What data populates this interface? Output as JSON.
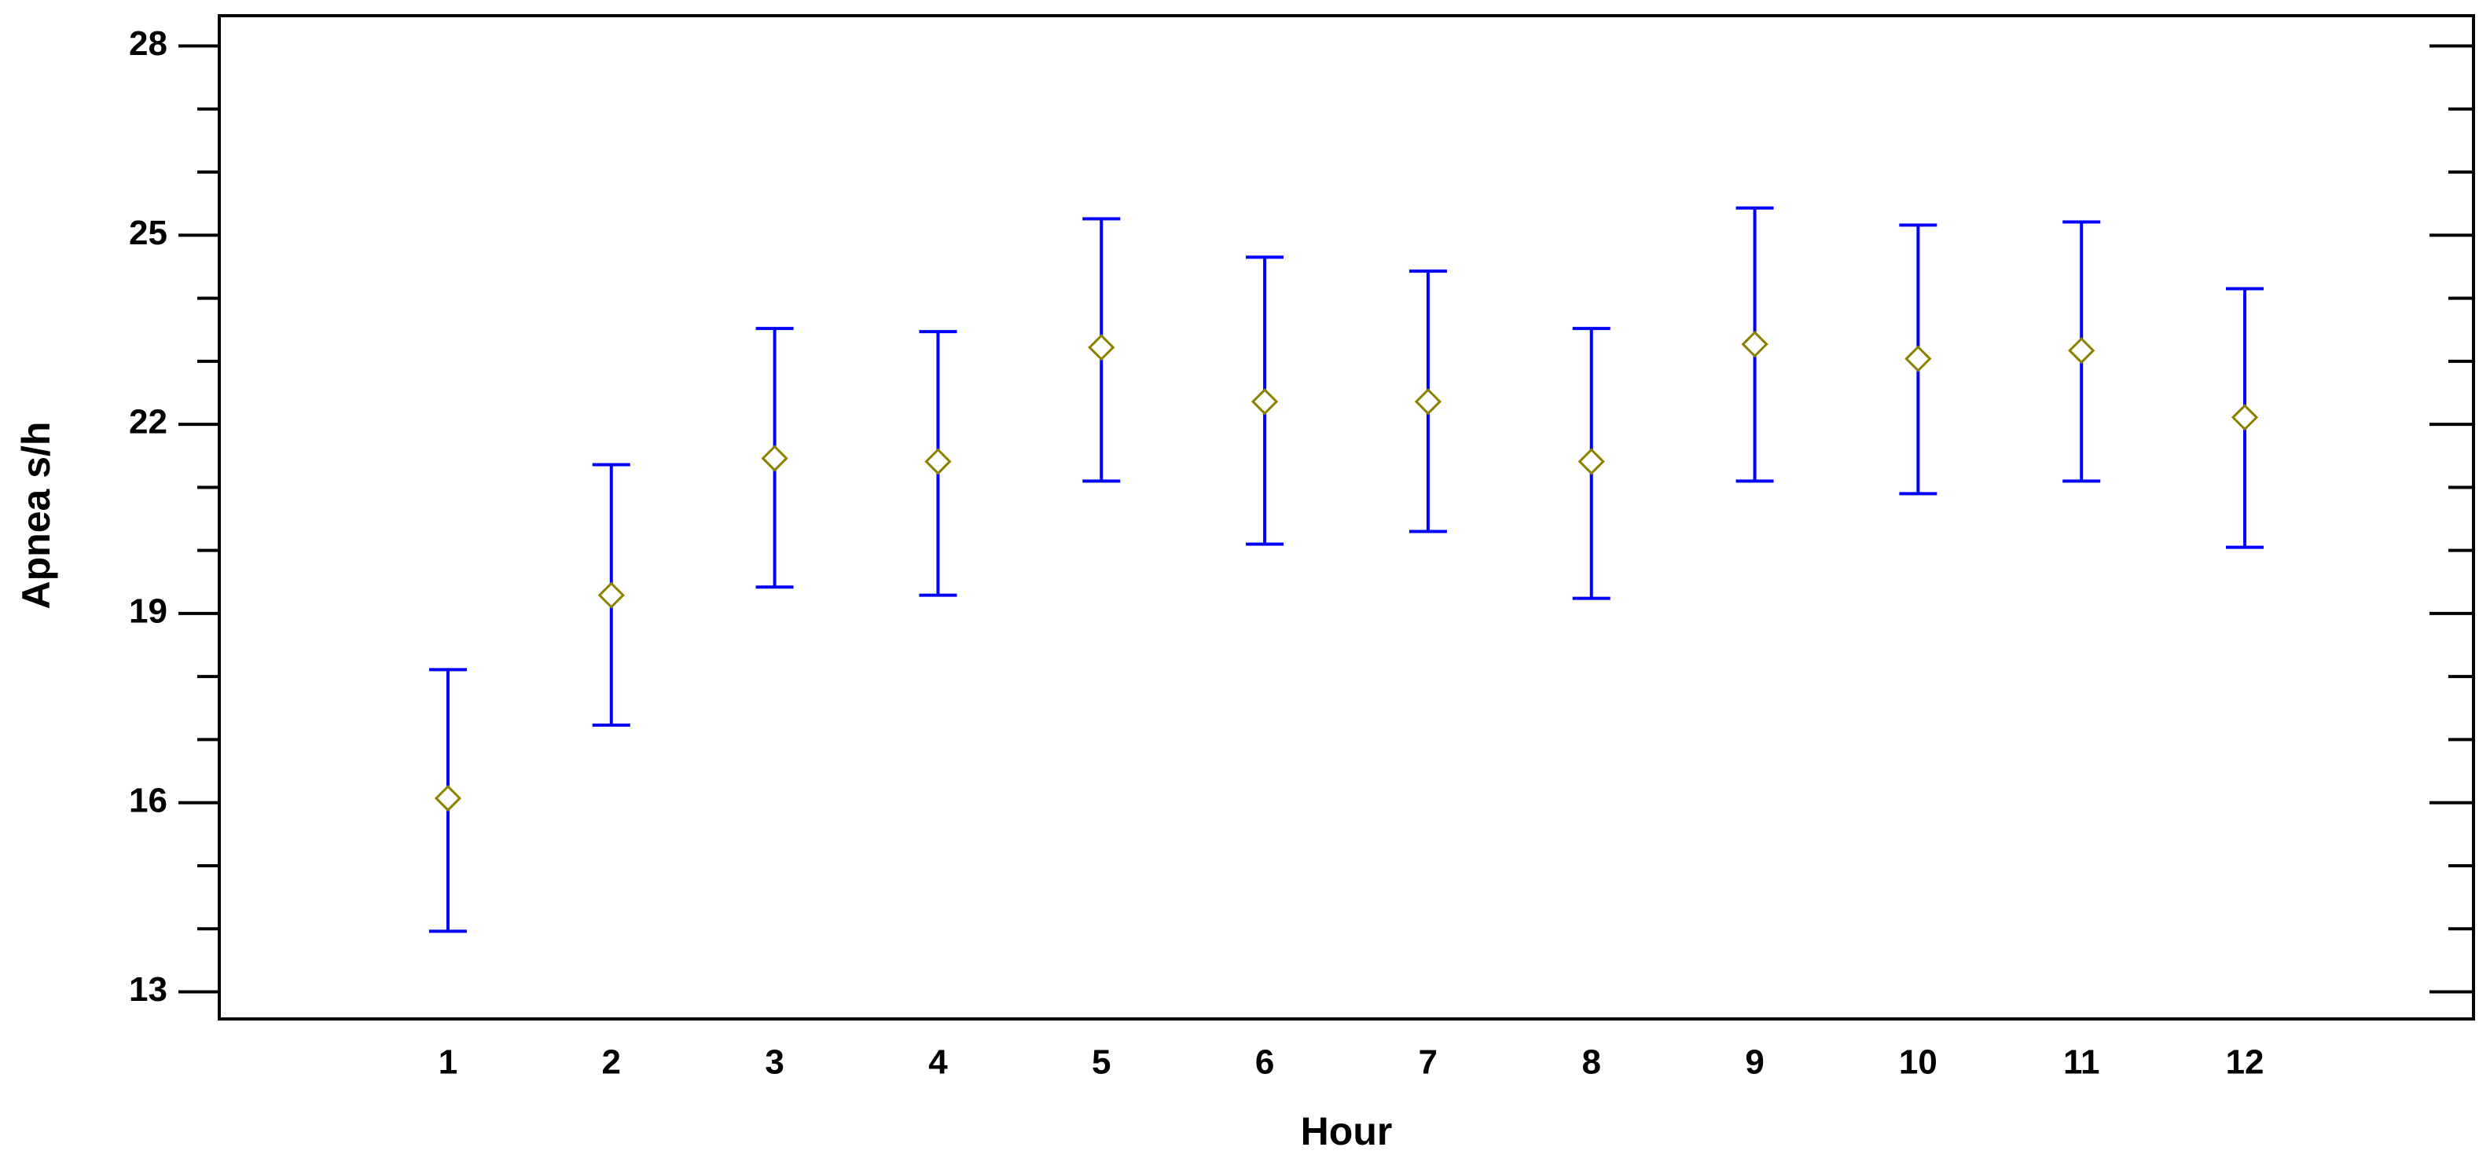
{
  "chart_data": {
    "type": "errorbar",
    "x_label": "Hour",
    "y_label": "Apnea s/h",
    "x": [
      1,
      2,
      3,
      4,
      5,
      6,
      7,
      8,
      9,
      10,
      11,
      12
    ],
    "values": [
      16.07,
      19.29,
      21.46,
      21.41,
      23.22,
      22.36,
      22.36,
      21.41,
      23.27,
      23.04,
      23.17,
      22.11
    ],
    "lower": [
      13.96,
      17.23,
      19.42,
      19.29,
      21.1,
      20.1,
      20.3,
      19.24,
      21.1,
      20.9,
      21.1,
      20.05
    ],
    "upper": [
      18.11,
      21.36,
      23.52,
      23.47,
      25.26,
      24.65,
      24.43,
      23.52,
      25.43,
      25.16,
      25.21,
      24.15
    ],
    "color": "#0000ff",
    "marker_color": "#8b8000",
    "xlim": [
      -0.4,
      13.4
    ],
    "xticks": [
      1,
      2,
      3,
      4,
      5,
      6,
      7,
      8,
      9,
      10,
      11,
      12
    ],
    "ylim": [
      12.57,
      28.48
    ],
    "yticks": [
      13,
      16,
      19,
      22,
      25,
      28
    ],
    "minor_yticks": [
      14,
      15,
      17,
      18,
      20,
      21,
      23,
      24,
      26,
      27
    ]
  }
}
